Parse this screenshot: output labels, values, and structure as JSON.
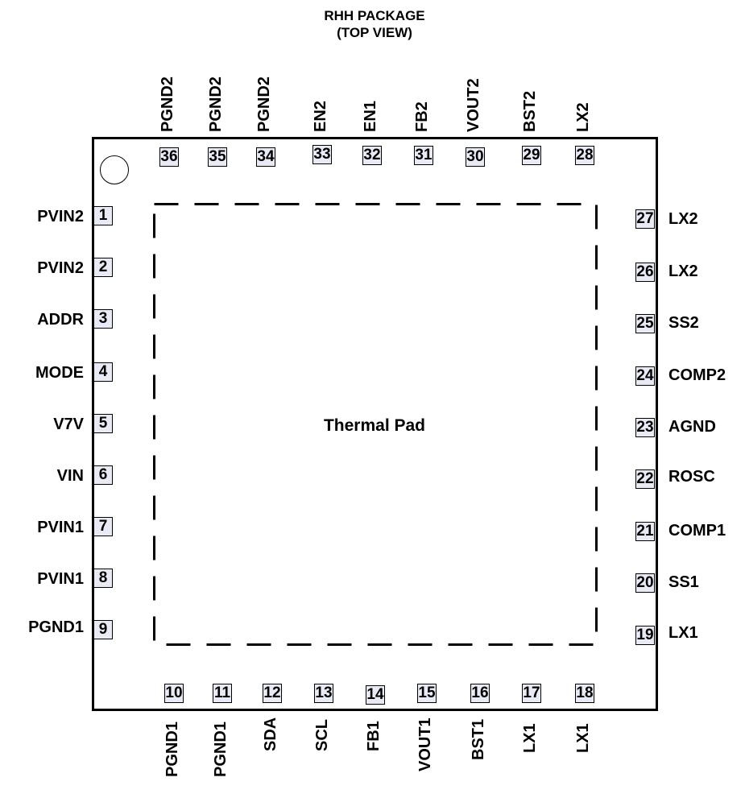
{
  "header": {
    "line1": "RHH PACKAGE",
    "line2": "(TOP VIEW)"
  },
  "thermal_pad_label": "Thermal Pad",
  "pins": {
    "left": [
      {
        "num": "1",
        "name": "PVIN2"
      },
      {
        "num": "2",
        "name": "PVIN2"
      },
      {
        "num": "3",
        "name": "ADDR"
      },
      {
        "num": "4",
        "name": "MODE"
      },
      {
        "num": "5",
        "name": "V7V"
      },
      {
        "num": "6",
        "name": "VIN"
      },
      {
        "num": "7",
        "name": "PVIN1"
      },
      {
        "num": "8",
        "name": "PVIN1"
      },
      {
        "num": "9",
        "name": "PGND1"
      }
    ],
    "bottom": [
      {
        "num": "10",
        "name": "PGND1"
      },
      {
        "num": "11",
        "name": "PGND1"
      },
      {
        "num": "12",
        "name": "SDA"
      },
      {
        "num": "13",
        "name": "SCL"
      },
      {
        "num": "14",
        "name": "FB1"
      },
      {
        "num": "15",
        "name": "VOUT1"
      },
      {
        "num": "16",
        "name": "BST1"
      },
      {
        "num": "17",
        "name": "LX1"
      },
      {
        "num": "18",
        "name": "LX1"
      }
    ],
    "right": [
      {
        "num": "19",
        "name": "LX1"
      },
      {
        "num": "20",
        "name": "SS1"
      },
      {
        "num": "21",
        "name": "COMP1"
      },
      {
        "num": "22",
        "name": "ROSC"
      },
      {
        "num": "23",
        "name": "AGND"
      },
      {
        "num": "24",
        "name": "COMP2"
      },
      {
        "num": "25",
        "name": "SS2"
      },
      {
        "num": "26",
        "name": "LX2"
      },
      {
        "num": "27",
        "name": "LX2"
      }
    ],
    "top": [
      {
        "num": "28",
        "name": "LX2"
      },
      {
        "num": "29",
        "name": "BST2"
      },
      {
        "num": "30",
        "name": "VOUT2"
      },
      {
        "num": "31",
        "name": "FB2"
      },
      {
        "num": "32",
        "name": "EN1"
      },
      {
        "num": "33",
        "name": "EN2"
      },
      {
        "num": "34",
        "name": "PGND2"
      },
      {
        "num": "35",
        "name": "PGND2"
      },
      {
        "num": "36",
        "name": "PGND2"
      }
    ]
  }
}
